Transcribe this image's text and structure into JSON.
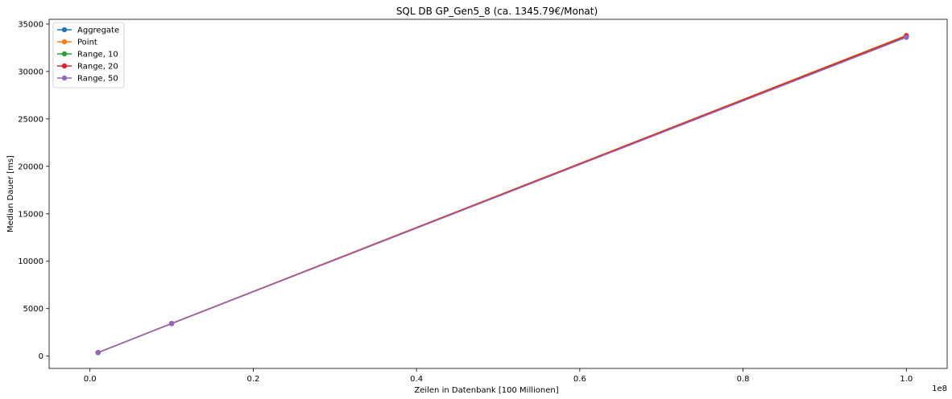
{
  "chart_data": {
    "type": "line",
    "title": "SQL DB GP_Gen5_8 (ca. 1345.79€/Monat)",
    "xlabel": "Zeilen in Datenbank [100 Millionen]",
    "ylabel": "Median Dauer [ms]",
    "x_offset_label": "1e8",
    "xlim": [
      -0.05,
      1.05
    ],
    "ylim": [
      -1300,
      35500
    ],
    "x_ticks": [
      0.0,
      0.2,
      0.4,
      0.6,
      0.8,
      1.0
    ],
    "x_tick_labels": [
      "0.0",
      "0.2",
      "0.4",
      "0.6",
      "0.8",
      "1.0"
    ],
    "y_ticks": [
      0,
      5000,
      10000,
      15000,
      20000,
      25000,
      30000,
      35000
    ],
    "y_tick_labels": [
      "0",
      "5000",
      "10000",
      "15000",
      "20000",
      "25000",
      "30000",
      "35000"
    ],
    "grid": false,
    "legend_position": "top-left",
    "x": [
      0.01,
      0.1,
      1.0
    ],
    "series": [
      {
        "name": "Aggregate",
        "color": "#1f77b4",
        "values": [
          370,
          3430,
          33700
        ]
      },
      {
        "name": "Point",
        "color": "#ff7f0e",
        "values": [
          375,
          3440,
          33800
        ]
      },
      {
        "name": "Range, 10",
        "color": "#2ca02c",
        "values": [
          370,
          3430,
          33650
        ]
      },
      {
        "name": "Range, 20",
        "color": "#d62728",
        "values": [
          372,
          3435,
          33750
        ]
      },
      {
        "name": "Range, 50",
        "color": "#9467bd",
        "values": [
          368,
          3425,
          33600
        ]
      }
    ]
  }
}
